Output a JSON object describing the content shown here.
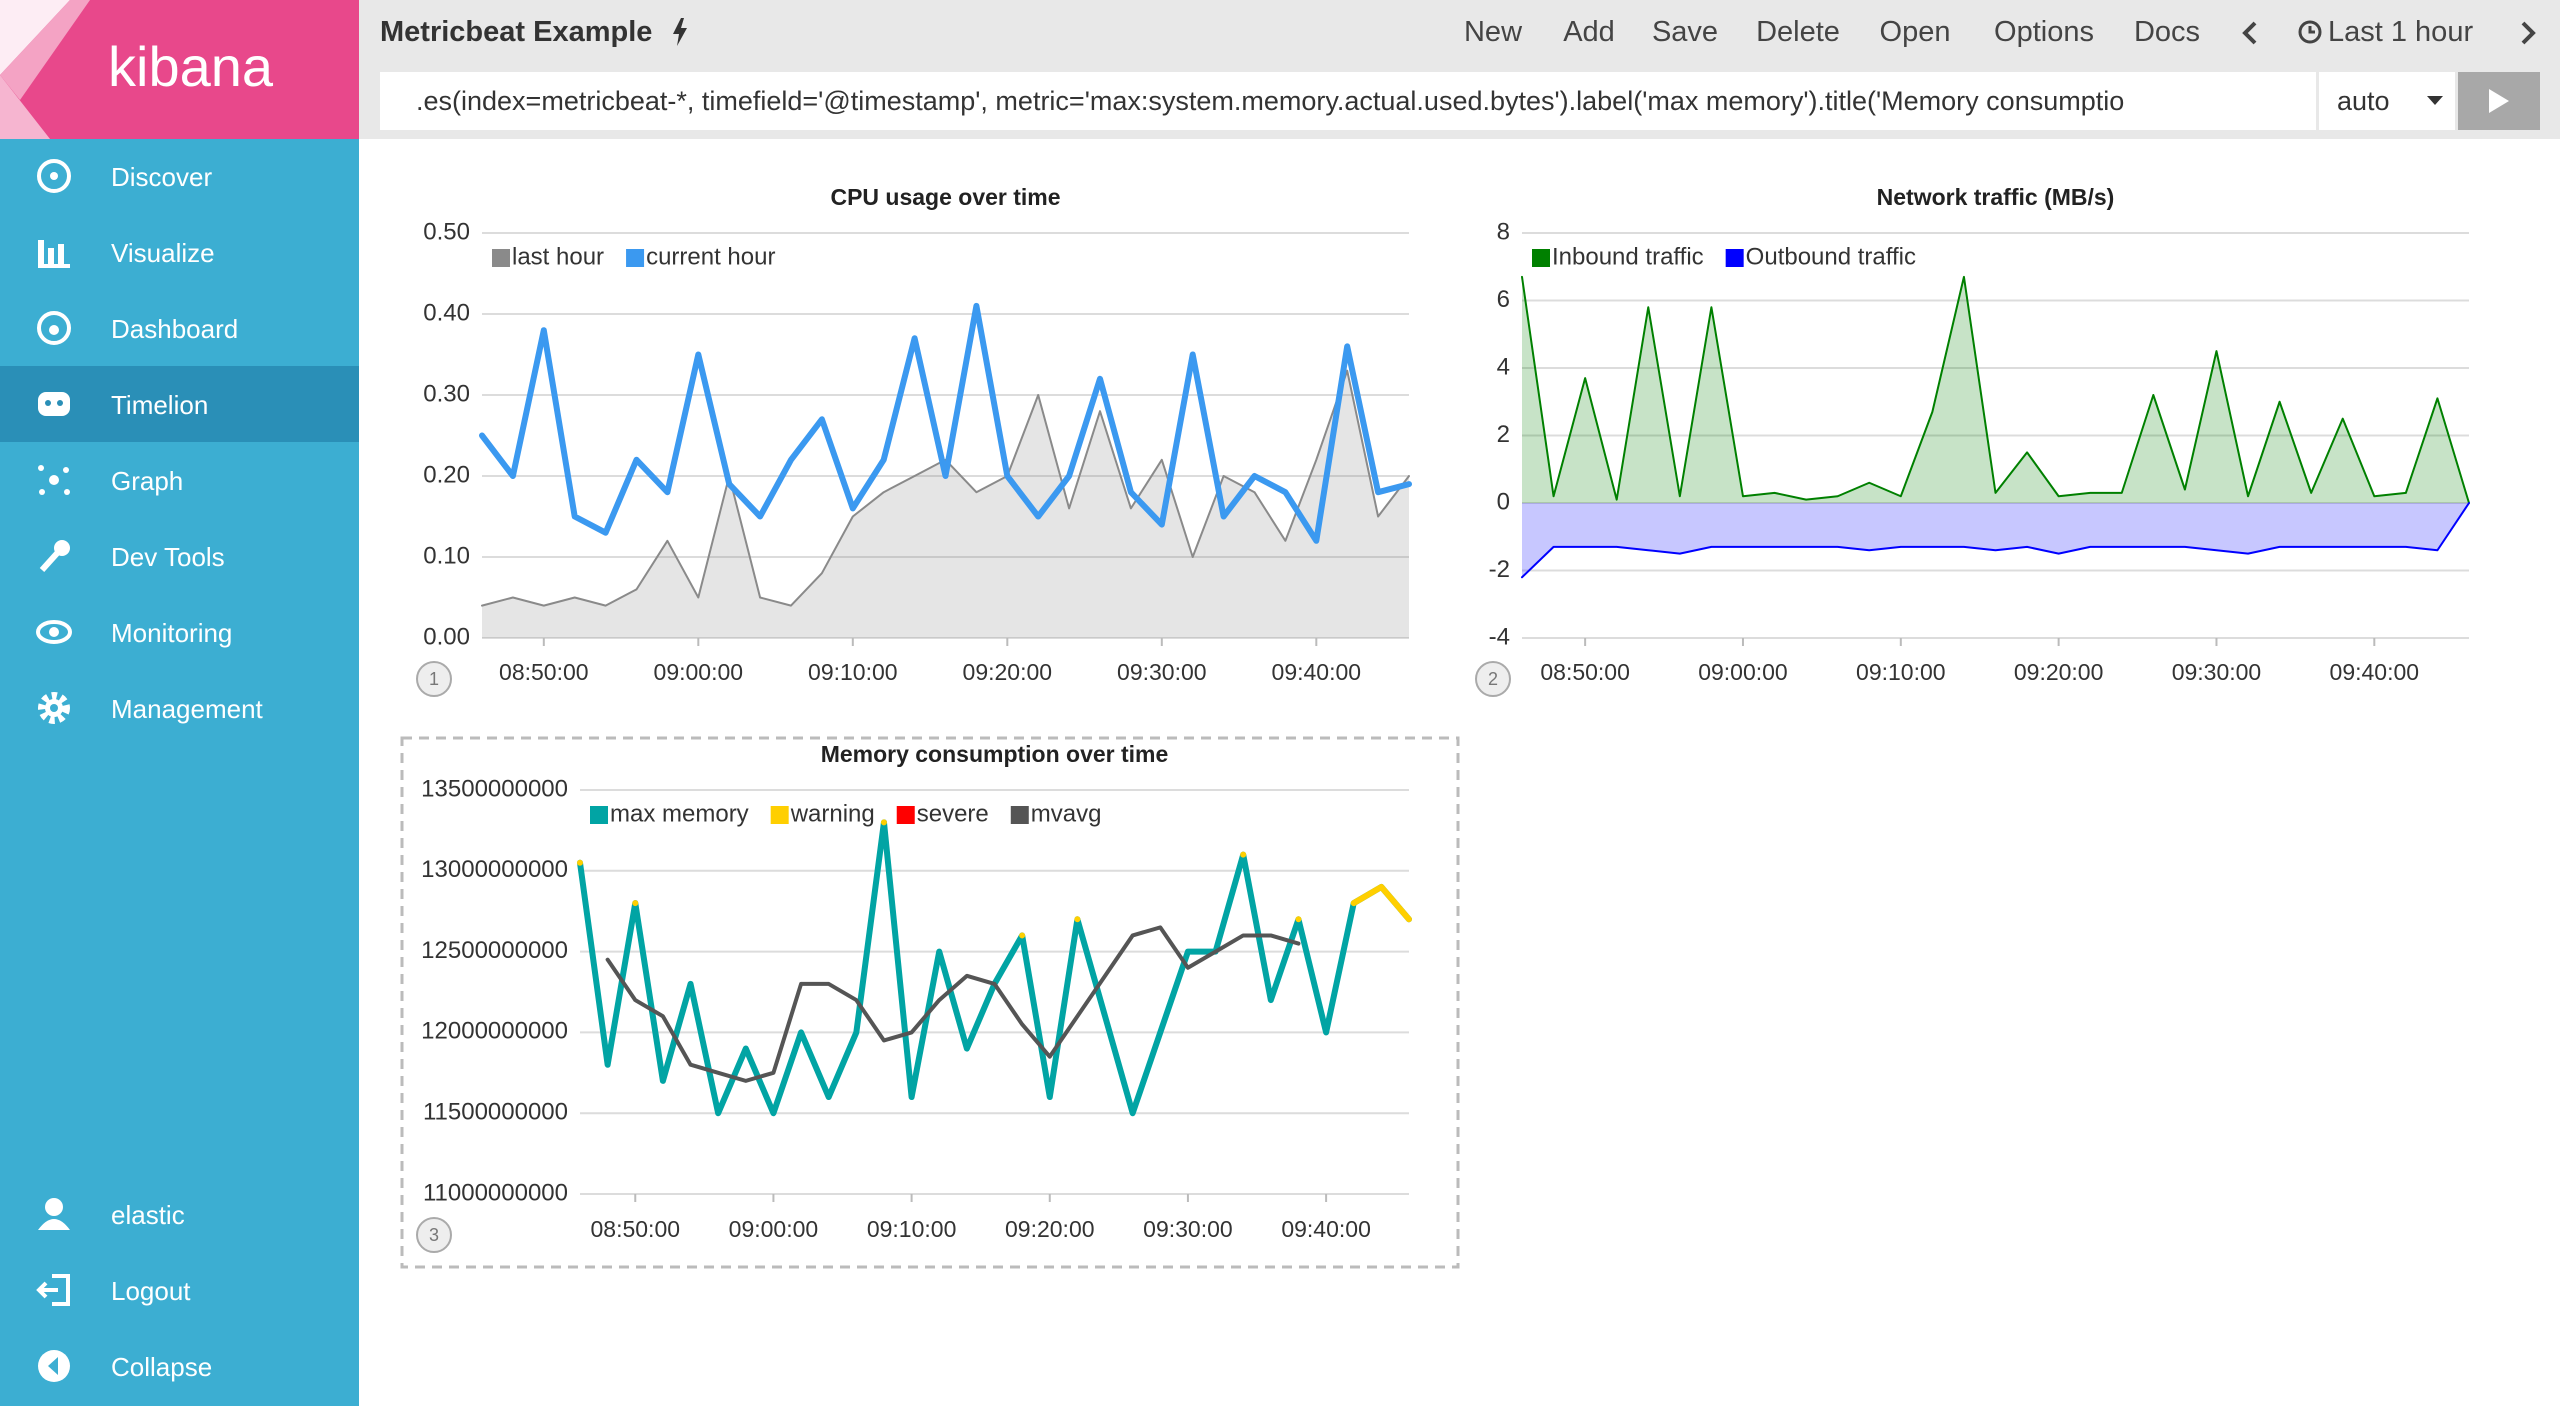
{
  "ui": {
    "app_name": "kibana",
    "nav": [
      "Discover",
      "Visualize",
      "Dashboard",
      "Timelion",
      "Graph",
      "Dev Tools",
      "Monitoring",
      "Management"
    ],
    "user_nav": [
      "elastic",
      "Logout",
      "Collapse"
    ],
    "title": "Metricbeat Example",
    "menu": [
      "New",
      "Add",
      "Save",
      "Delete",
      "Open",
      "Options",
      "Docs"
    ],
    "time_range": "Last 1 hour",
    "expression": ".es(index=metricbeat-*, timefield='@timestamp', metric='max:system.memory.actual.used.bytes').label('max memory').title('Memory consumptio",
    "interval": "auto",
    "panel_numbers": [
      "1",
      "2",
      "3"
    ]
  },
  "chart_data": [
    {
      "type": "line",
      "title": "CPU usage over time",
      "x": [
        "08:46:00",
        "08:48:00",
        "08:50:00",
        "08:52:00",
        "08:54:00",
        "08:56:00",
        "08:58:00",
        "09:00:00",
        "09:02:00",
        "09:04:00",
        "09:06:00",
        "09:08:00",
        "09:10:00",
        "09:12:00",
        "09:14:00",
        "09:16:00",
        "09:18:00",
        "09:20:00",
        "09:22:00",
        "09:24:00",
        "09:26:00",
        "09:28:00",
        "09:30:00",
        "09:32:00",
        "09:34:00",
        "09:36:00",
        "09:38:00",
        "09:40:00",
        "09:42:00",
        "09:44:00",
        "09:46:00"
      ],
      "series": [
        {
          "name": "last hour",
          "color": "#8a8a8a",
          "fill": true,
          "values": [
            0.04,
            0.05,
            0.04,
            0.05,
            0.04,
            0.06,
            0.12,
            0.05,
            0.2,
            0.05,
            0.04,
            0.08,
            0.15,
            0.18,
            0.2,
            0.22,
            0.18,
            0.2,
            0.3,
            0.16,
            0.28,
            0.16,
            0.22,
            0.1,
            0.2,
            0.18,
            0.12,
            0.22,
            0.33,
            0.15,
            0.2
          ]
        },
        {
          "name": "current hour",
          "color": "#3b99f0",
          "fill": false,
          "values": [
            0.25,
            0.2,
            0.38,
            0.15,
            0.13,
            0.22,
            0.18,
            0.35,
            0.19,
            0.15,
            0.22,
            0.27,
            0.16,
            0.22,
            0.37,
            0.2,
            0.41,
            0.2,
            0.15,
            0.2,
            0.32,
            0.18,
            0.14,
            0.35,
            0.15,
            0.2,
            0.18,
            0.12,
            0.36,
            0.18,
            0.19
          ]
        }
      ],
      "xlim": [
        "08:46:00",
        "09:46:00"
      ],
      "xticks": [
        "08:50:00",
        "09:00:00",
        "09:10:00",
        "09:20:00",
        "09:30:00",
        "09:40:00"
      ],
      "ylim": [
        0,
        0.5
      ],
      "yticks": [
        {
          "value": 0,
          "label": "0.00"
        },
        {
          "value": 0.1,
          "label": "0.10"
        },
        {
          "value": 0.2,
          "label": "0.20"
        },
        {
          "value": 0.3,
          "label": "0.30"
        },
        {
          "value": 0.4,
          "label": "0.40"
        },
        {
          "value": 0.5,
          "label": "0.50"
        }
      ],
      "grid": true,
      "legend": "top-left"
    },
    {
      "type": "line",
      "title": "Network traffic (MB/s)",
      "x": [
        "08:46:00",
        "08:48:00",
        "08:50:00",
        "08:52:00",
        "08:54:00",
        "08:56:00",
        "08:58:00",
        "09:00:00",
        "09:02:00",
        "09:04:00",
        "09:06:00",
        "09:08:00",
        "09:10:00",
        "09:12:00",
        "09:14:00",
        "09:16:00",
        "09:18:00",
        "09:20:00",
        "09:22:00",
        "09:24:00",
        "09:26:00",
        "09:28:00",
        "09:30:00",
        "09:32:00",
        "09:34:00",
        "09:36:00",
        "09:38:00",
        "09:40:00",
        "09:42:00",
        "09:44:00",
        "09:46:00"
      ],
      "series": [
        {
          "name": "Inbound traffic",
          "color": "#008000",
          "fill": true,
          "values": [
            6.7,
            0.2,
            3.7,
            0.1,
            5.8,
            0.2,
            5.8,
            0.2,
            0.3,
            0.1,
            0.2,
            0.6,
            0.2,
            2.7,
            6.7,
            0.3,
            1.5,
            0.2,
            0.3,
            0.3,
            3.2,
            0.4,
            4.5,
            0.2,
            3,
            0.3,
            2.5,
            0.2,
            0.3,
            3.1,
            0
          ]
        },
        {
          "name": "Outbound traffic",
          "color": "#0000ff",
          "fill": true,
          "values": [
            -2.2,
            -1.3,
            -1.3,
            -1.3,
            -1.4,
            -1.5,
            -1.3,
            -1.3,
            -1.3,
            -1.3,
            -1.3,
            -1.4,
            -1.3,
            -1.3,
            -1.3,
            -1.4,
            -1.3,
            -1.5,
            -1.3,
            -1.3,
            -1.3,
            -1.3,
            -1.4,
            -1.5,
            -1.3,
            -1.3,
            -1.3,
            -1.3,
            -1.3,
            -1.4,
            0
          ]
        }
      ],
      "xlim": [
        "08:46:00",
        "09:46:00"
      ],
      "xticks": [
        "08:50:00",
        "09:00:00",
        "09:10:00",
        "09:20:00",
        "09:30:00",
        "09:40:00"
      ],
      "ylim": [
        -4,
        8
      ],
      "yticks": [
        -4,
        -2,
        0,
        2,
        4,
        6,
        8
      ],
      "grid": true,
      "legend": "top-left"
    },
    {
      "type": "line",
      "title": "Memory consumption over time",
      "x": [
        "08:46:00",
        "08:48:00",
        "08:50:00",
        "08:52:00",
        "08:54:00",
        "08:56:00",
        "08:58:00",
        "09:00:00",
        "09:02:00",
        "09:04:00",
        "09:06:00",
        "09:08:00",
        "09:10:00",
        "09:12:00",
        "09:14:00",
        "09:16:00",
        "09:18:00",
        "09:20:00",
        "09:22:00",
        "09:24:00",
        "09:26:00",
        "09:28:00",
        "09:30:00",
        "09:32:00",
        "09:34:00",
        "09:36:00",
        "09:38:00",
        "09:40:00",
        "09:42:00",
        "09:44:00",
        "09:46:00"
      ],
      "series": [
        {
          "name": "max memory",
          "color": "#01a4a4",
          "fill": false,
          "values": [
            13050000000,
            11800000000,
            12800000000,
            11700000000,
            12300000000,
            11500000000,
            11900000000,
            11500000000,
            12000000000,
            11600000000,
            12000000000,
            13300000000,
            11600000000,
            12500000000,
            11900000000,
            12300000000,
            12600000000,
            11600000000,
            12700000000,
            12100000000,
            11500000000,
            12000000000,
            12500000000,
            12500000000,
            13100000000,
            12200000000,
            12700000000,
            12000000000,
            12800000000,
            12900000000,
            12700000000
          ]
        },
        {
          "name": "warning",
          "color": "#ffcf00",
          "fill": false,
          "values": [
            13050000000,
            null,
            12800000000,
            null,
            null,
            null,
            null,
            null,
            null,
            null,
            null,
            13300000000,
            null,
            null,
            null,
            null,
            12600000000,
            null,
            12700000000,
            null,
            null,
            null,
            null,
            null,
            13100000000,
            null,
            12700000000,
            null,
            12800000000,
            12900000000,
            12700000000
          ]
        },
        {
          "name": "severe",
          "color": "#ff0000",
          "fill": false,
          "values": [
            null,
            null,
            null,
            null,
            null,
            null,
            null,
            null,
            null,
            null,
            null,
            null,
            null,
            null,
            null,
            null,
            null,
            null,
            null,
            null,
            null,
            null,
            null,
            null,
            null,
            null,
            null,
            null,
            null,
            null,
            null
          ]
        },
        {
          "name": "mvavg",
          "color": "#555555",
          "fill": false,
          "values": [
            null,
            12450000000,
            12200000000,
            12100000000,
            11800000000,
            11750000000,
            11700000000,
            11750000000,
            12300000000,
            12300000000,
            12200000000,
            11950000000,
            12000000000,
            12200000000,
            12350000000,
            12300000000,
            12050000000,
            11850000000,
            12100000000,
            12350000000,
            12600000000,
            12650000000,
            12400000000,
            12500000000,
            12600000000,
            12600000000,
            12550000000,
            null,
            null,
            null,
            null
          ]
        }
      ],
      "xlim": [
        "08:46:00",
        "09:46:00"
      ],
      "xticks": [
        "08:50:00",
        "09:00:00",
        "09:10:00",
        "09:20:00",
        "09:30:00",
        "09:40:00"
      ],
      "ylim": [
        11000000000,
        13500000000
      ],
      "yticks": [
        11000000000,
        11500000000,
        12000000000,
        12500000000,
        13000000000,
        13500000000
      ],
      "grid": true,
      "legend": "top-left"
    }
  ]
}
